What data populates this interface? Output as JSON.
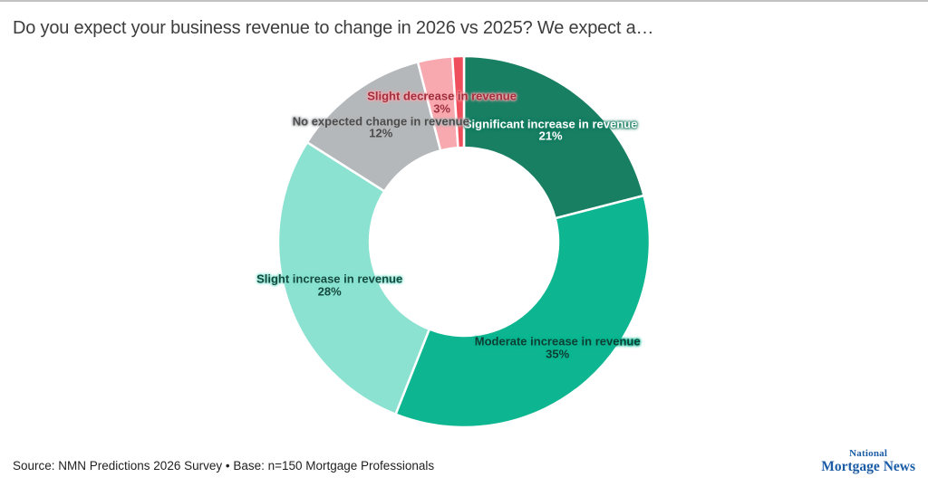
{
  "header": {
    "title": "Do you expect your business revenue to change in 2026 vs 2025? We expect a…"
  },
  "chart_data": {
    "type": "pie",
    "subtype": "donut",
    "title": "Do you expect your business revenue to change in 2026 vs 2025? We expect a…",
    "legend_position": "none",
    "labels_inside": true,
    "start_angle_deg": 0,
    "direction": "clockwise",
    "inner_radius_ratio": 0.507,
    "slices": [
      {
        "label": "Significant increase in revenue",
        "value": 21,
        "display": "21%",
        "color": "#187F63",
        "text_color": "#FFFFFF",
        "show_label": true
      },
      {
        "label": "Moderate increase in revenue",
        "value": 35,
        "display": "35%",
        "color": "#0DB691",
        "text_color": "#0D3E33",
        "show_label": true
      },
      {
        "label": "Slight increase in revenue",
        "value": 28,
        "display": "28%",
        "color": "#8BE2D1",
        "text_color": "#14493E",
        "show_label": true
      },
      {
        "label": "No expected change in revenue",
        "value": 12,
        "display": "12%",
        "color": "#B5B8BA",
        "text_color": "#4C4C4C",
        "show_label": true
      },
      {
        "label": "Slight decrease in revenue",
        "value": 3,
        "display": "3%",
        "color": "#F8A9AF",
        "text_color": "#A12F3E",
        "show_label": true
      },
      {
        "label": "",
        "value": 1,
        "display": "",
        "color": "#EF4F5C",
        "text_color": "#FFFFFF",
        "show_label": false
      }
    ]
  },
  "footer": {
    "source": "Source: NMN Predictions 2026 Survey • Base: n=150 Mortgage Professionals",
    "logo": {
      "line1": "National",
      "line2": "Mortgage News",
      "color": "#1b5ca7"
    }
  }
}
